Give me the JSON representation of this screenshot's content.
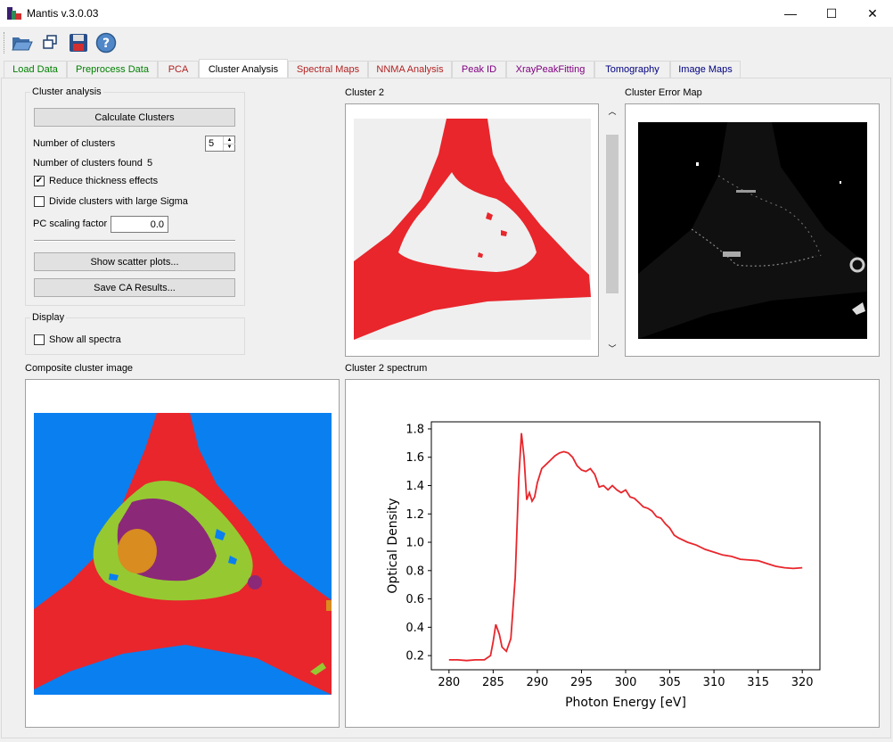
{
  "window": {
    "title": "Mantis v.3.0.03",
    "minimize_glyph": "—",
    "maximize_glyph": "☐",
    "close_glyph": "✕"
  },
  "toolbar": {
    "icons": [
      "open-folder-icon",
      "windows-icon",
      "save-icon",
      "help-icon"
    ]
  },
  "tabs": [
    {
      "label": "Load Data",
      "color": "#008000"
    },
    {
      "label": "Preprocess Data",
      "color": "#008000"
    },
    {
      "label": "PCA",
      "color": "#b22222"
    },
    {
      "label": "Cluster Analysis",
      "color": "#000000"
    },
    {
      "label": "Spectral Maps",
      "color": "#b22222"
    },
    {
      "label": "NNMA Analysis",
      "color": "#b22222"
    },
    {
      "label": "Peak ID",
      "color": "#800080"
    },
    {
      "label": "XrayPeakFitting",
      "color": "#800080"
    },
    {
      "label": "Tomography",
      "color": "#000080"
    },
    {
      "label": "Image Maps",
      "color": "#000080"
    }
  ],
  "cluster_analysis": {
    "group_label": "Cluster analysis",
    "calculate_button": "Calculate Clusters",
    "num_clusters_label": "Number of clusters",
    "num_clusters_value": "5",
    "found_label": "Number of clusters found",
    "found_value": "5",
    "reduce_thickness_label": "Reduce thickness effects",
    "reduce_thickness_checked": true,
    "divide_sigma_label": "Divide clusters with large Sigma",
    "divide_sigma_checked": false,
    "pc_scaling_label": "PC scaling factor",
    "pc_scaling_value": "0.0",
    "scatter_button": "Show scatter plots...",
    "save_button": "Save CA Results..."
  },
  "display": {
    "group_label": "Display",
    "show_all_label": "Show all spectra",
    "show_all_checked": false
  },
  "panels": {
    "cluster_title": "Cluster 2",
    "error_map_title": "Cluster Error Map",
    "composite_title": "Composite cluster image",
    "spectrum_title": "Cluster 2 spectrum"
  },
  "colors": {
    "cluster_red": "#e8262c",
    "cluster_blue": "#0a7ff0",
    "cluster_green": "#96c832",
    "cluster_purple": "#8c2878",
    "cluster_orange": "#d98c1f",
    "image_bg": "#efefef"
  },
  "chart_data": {
    "type": "line",
    "title": "",
    "xlabel": "Photon Energy [eV]",
    "ylabel": "Optical Density",
    "xlim": [
      278,
      322
    ],
    "ylim": [
      0.1,
      1.85
    ],
    "xticks": [
      280,
      285,
      290,
      295,
      300,
      305,
      310,
      315,
      320
    ],
    "yticks": [
      0.2,
      0.4,
      0.6,
      0.8,
      1.0,
      1.2,
      1.4,
      1.6,
      1.8
    ],
    "ytick_labels": [
      "0.2",
      "0.4",
      "0.6",
      "0.8",
      "1.0",
      "1.2",
      "1.4",
      "1.6",
      "1.8"
    ],
    "color": "#e8262c",
    "x": [
      280,
      281,
      282,
      283,
      284,
      284.7,
      285.0,
      285.3,
      285.7,
      286.0,
      286.5,
      287.0,
      287.5,
      287.9,
      288.2,
      288.5,
      288.8,
      289.1,
      289.4,
      289.7,
      290.0,
      290.5,
      291,
      291.5,
      292,
      292.5,
      293,
      293.5,
      294,
      294.5,
      295,
      295.5,
      296,
      296.5,
      297,
      297.5,
      298,
      298.5,
      299,
      299.5,
      300,
      300.5,
      301,
      301.5,
      302,
      302.5,
      303,
      303.5,
      304,
      304.5,
      305,
      305.5,
      306,
      307,
      308,
      309,
      310,
      311,
      312,
      313,
      314,
      315,
      316,
      317,
      318,
      319,
      320
    ],
    "y": [
      0.17,
      0.17,
      0.165,
      0.17,
      0.17,
      0.2,
      0.3,
      0.42,
      0.35,
      0.26,
      0.23,
      0.32,
      0.75,
      1.45,
      1.77,
      1.6,
      1.3,
      1.35,
      1.29,
      1.32,
      1.42,
      1.52,
      1.55,
      1.58,
      1.61,
      1.63,
      1.64,
      1.63,
      1.6,
      1.54,
      1.51,
      1.5,
      1.52,
      1.48,
      1.39,
      1.4,
      1.37,
      1.4,
      1.37,
      1.35,
      1.37,
      1.32,
      1.31,
      1.28,
      1.25,
      1.24,
      1.22,
      1.18,
      1.17,
      1.13,
      1.1,
      1.05,
      1.03,
      1.0,
      0.98,
      0.95,
      0.93,
      0.91,
      0.9,
      0.88,
      0.875,
      0.87,
      0.85,
      0.83,
      0.82,
      0.815,
      0.82
    ]
  }
}
